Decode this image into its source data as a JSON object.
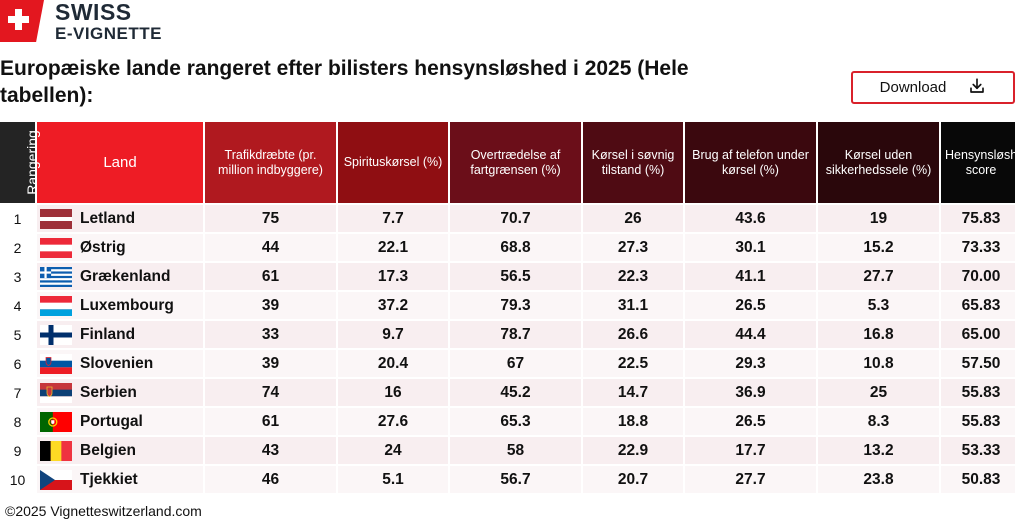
{
  "brand": {
    "line1": "SWISS",
    "line2": "E-VIGNETTE"
  },
  "title": "Europæiske lande rangeret efter bilisters hensynsløshed i 2025 (Hele tabellen):",
  "download": {
    "label": "Download",
    "icon": "download-icon"
  },
  "columns": {
    "rank": "Rangering",
    "land": "Land",
    "deaths": "Trafikdræbte (pr. million indbyggere)",
    "drunk": "Spirituskørsel (%)",
    "speed": "Overtrædelse af fartgrænsen (%)",
    "sleepy": "Kørsel i søvnig tilstand (%)",
    "phone": "Brug af telefon under kørsel (%)",
    "belt": "Kørsel uden sikkerhedssele (%)",
    "score": "Hensynsløsheds-score"
  },
  "rows": [
    {
      "rank": "1",
      "flag": "flag-latvia",
      "land": "Letland",
      "deaths": "75",
      "drunk": "7.7",
      "speed": "70.7",
      "sleepy": "26",
      "phone": "43.6",
      "belt": "19",
      "score": "75.83"
    },
    {
      "rank": "2",
      "flag": "flag-austria",
      "land": "Østrig",
      "deaths": "44",
      "drunk": "22.1",
      "speed": "68.8",
      "sleepy": "27.3",
      "phone": "30.1",
      "belt": "15.2",
      "score": "73.33"
    },
    {
      "rank": "3",
      "flag": "flag-greece",
      "land": "Grækenland",
      "deaths": "61",
      "drunk": "17.3",
      "speed": "56.5",
      "sleepy": "22.3",
      "phone": "41.1",
      "belt": "27.7",
      "score": "70.00"
    },
    {
      "rank": "4",
      "flag": "flag-luxembourg",
      "land": "Luxembourg",
      "deaths": "39",
      "drunk": "37.2",
      "speed": "79.3",
      "sleepy": "31.1",
      "phone": "26.5",
      "belt": "5.3",
      "score": "65.83"
    },
    {
      "rank": "5",
      "flag": "flag-finland",
      "land": "Finland",
      "deaths": "33",
      "drunk": "9.7",
      "speed": "78.7",
      "sleepy": "26.6",
      "phone": "44.4",
      "belt": "16.8",
      "score": "65.00"
    },
    {
      "rank": "6",
      "flag": "flag-slovenia",
      "land": "Slovenien",
      "deaths": "39",
      "drunk": "20.4",
      "speed": "67",
      "sleepy": "22.5",
      "phone": "29.3",
      "belt": "10.8",
      "score": "57.50"
    },
    {
      "rank": "7",
      "flag": "flag-serbia",
      "land": "Serbien",
      "deaths": "74",
      "drunk": "16",
      "speed": "45.2",
      "sleepy": "14.7",
      "phone": "36.9",
      "belt": "25",
      "score": "55.83"
    },
    {
      "rank": "8",
      "flag": "flag-portugal",
      "land": "Portugal",
      "deaths": "61",
      "drunk": "27.6",
      "speed": "65.3",
      "sleepy": "18.8",
      "phone": "26.5",
      "belt": "8.3",
      "score": "55.83"
    },
    {
      "rank": "9",
      "flag": "flag-belgium",
      "land": "Belgien",
      "deaths": "43",
      "drunk": "24",
      "speed": "58",
      "sleepy": "22.9",
      "phone": "17.7",
      "belt": "13.2",
      "score": "53.33"
    },
    {
      "rank": "10",
      "flag": "flag-czechia",
      "land": "Tjekkiet",
      "deaths": "46",
      "drunk": "5.1",
      "speed": "56.7",
      "sleepy": "20.7",
      "phone": "27.7",
      "belt": "23.8",
      "score": "50.83"
    }
  ],
  "footer": "©2025 Vignetteswitzerland.com",
  "colors": {
    "accent": "#ee1c25",
    "download_border": "#d9212b",
    "row_bg": "#f8eef0"
  }
}
